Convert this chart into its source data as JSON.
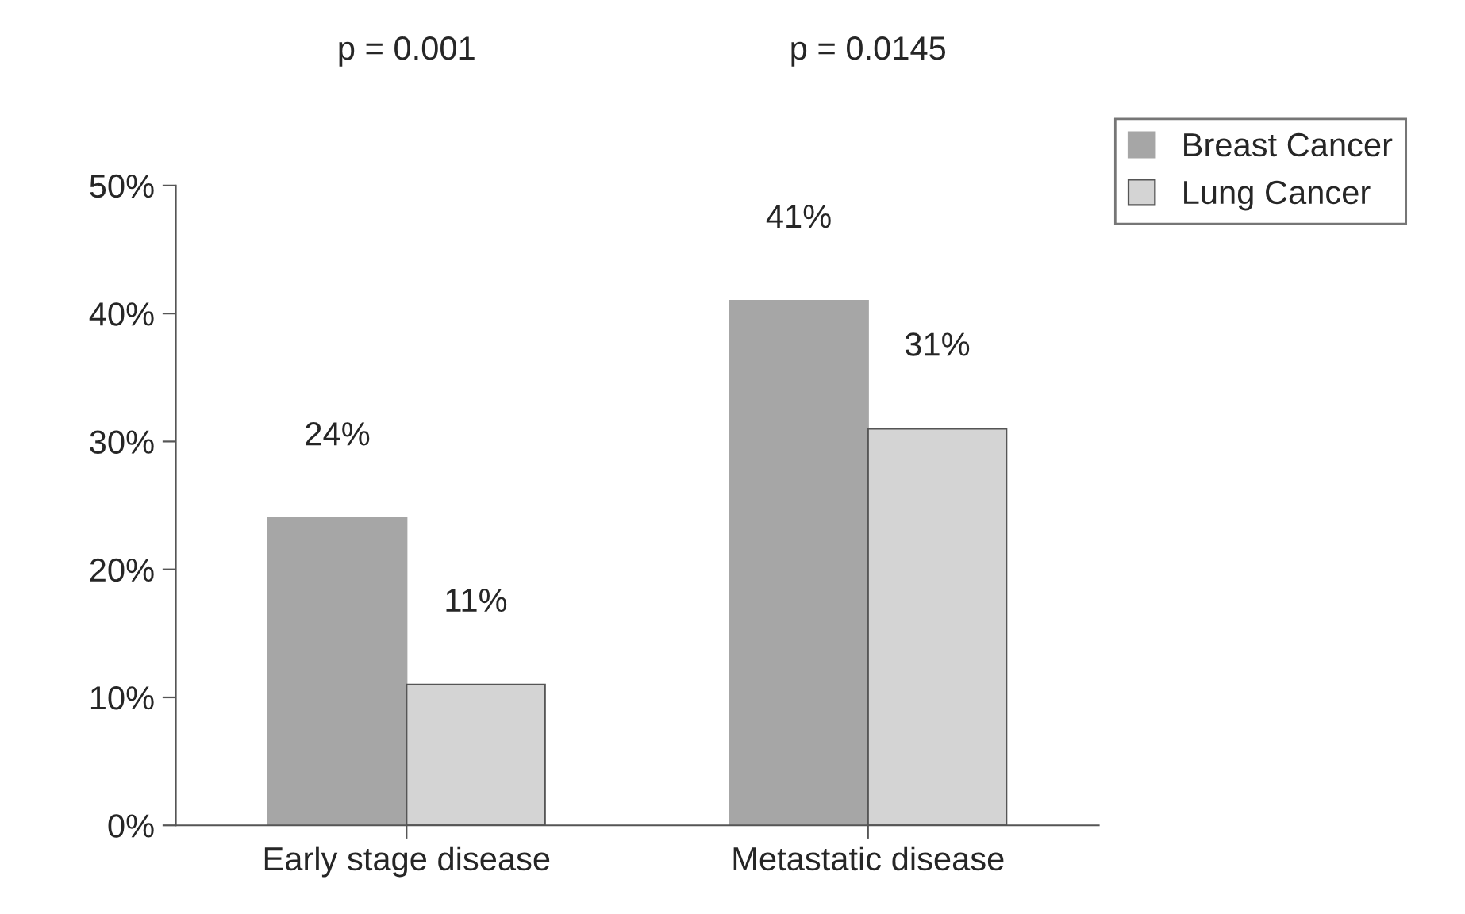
{
  "chart_data": {
    "type": "bar",
    "categories": [
      "Early stage disease",
      "Metastatic disease"
    ],
    "series": [
      {
        "name": "Breast Cancer",
        "color": "#a6a6a6",
        "values": [
          24,
          41
        ],
        "value_labels": [
          "24%",
          "41%"
        ]
      },
      {
        "name": "Lung Cancer",
        "color": "#d4d4d4",
        "values": [
          11,
          31
        ],
        "value_labels": [
          "11%",
          "31%"
        ]
      }
    ],
    "ylim": [
      0,
      50
    ],
    "yticks": [
      {
        "value": 0,
        "label": "0%"
      },
      {
        "value": 10,
        "label": "10%"
      },
      {
        "value": 20,
        "label": "20%"
      },
      {
        "value": 30,
        "label": "30%"
      },
      {
        "value": 40,
        "label": "40%"
      },
      {
        "value": 50,
        "label": "50%"
      }
    ],
    "annotations": [
      "p = 0.001",
      "p = 0.0145"
    ],
    "legend": "top right",
    "grid": false
  }
}
